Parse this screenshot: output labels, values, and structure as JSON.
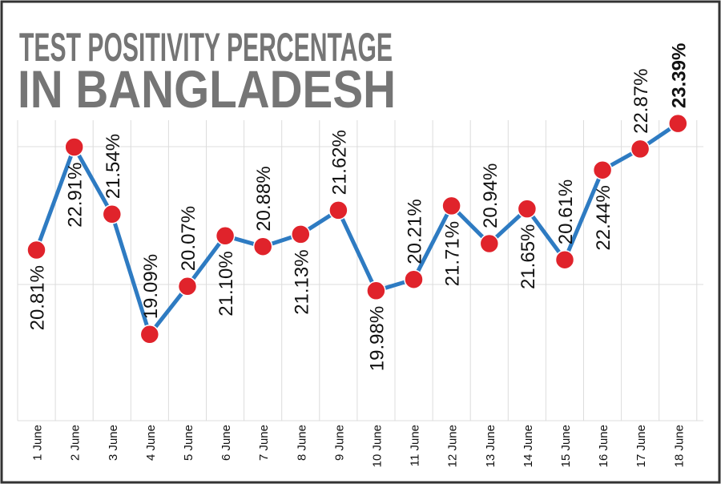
{
  "title_lines": [
    "TEST POSITIVITY PERCENTAGE",
    "IN BANGLADESH"
  ],
  "chart_data": {
    "type": "line",
    "title": "TEST POSITIVITY PERCENTAGE IN BANGLADESH",
    "categories": [
      "1 June",
      "2 June",
      "3 June",
      "4 June",
      "5 June",
      "6 June",
      "7 June",
      "8 June",
      "9 June",
      "10 June",
      "11 June",
      "12 June",
      "13 June",
      "14 June",
      "15 June",
      "16 June",
      "17 June",
      "18 June"
    ],
    "values": [
      20.81,
      22.91,
      21.54,
      19.09,
      20.07,
      21.1,
      20.88,
      21.13,
      21.62,
      19.98,
      20.21,
      21.71,
      20.94,
      21.65,
      20.61,
      22.44,
      22.87,
      23.39
    ],
    "labels": [
      "20.81%",
      "22.91%",
      "21.54%",
      "19.09%",
      "20.07%",
      "21.10%",
      "20.88%",
      "21.13%",
      "21.62%",
      "19.98%",
      "20.21%",
      "21.71%",
      "20.94%",
      "21.65%",
      "20.61%",
      "22.44%",
      "22.87%",
      "23.39%"
    ],
    "label_position": [
      "below",
      "below",
      "above",
      "above",
      "above",
      "below",
      "above",
      "below",
      "above",
      "below",
      "above",
      "below",
      "above",
      "below",
      "above",
      "below",
      "above",
      "above"
    ],
    "highlight_index": 17,
    "xlabel": "",
    "ylabel": "",
    "grid": true,
    "legend": "none",
    "colors": {
      "line": "#2e7bc2",
      "marker": "#e0232b",
      "grid": "#dcdcdc",
      "title": "#757575",
      "frame": "#333333"
    }
  }
}
